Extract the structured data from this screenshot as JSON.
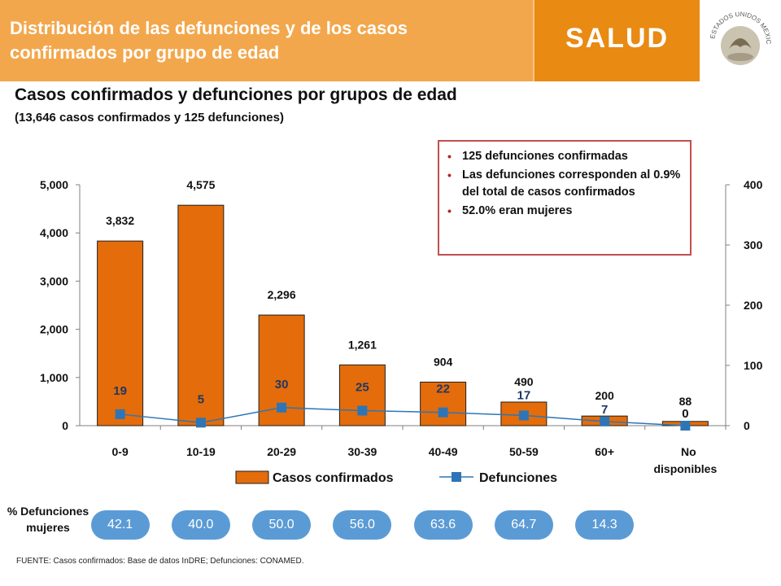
{
  "header": {
    "title": "Distribución de las defunciones y de los casos confirmados por grupo de edad",
    "brand": "SALUD",
    "seal_text": "ESTADOS UNIDOS MEXICANOS"
  },
  "chart_data": {
    "type": "bar",
    "title": "Casos confirmados y defunciones por grupos de edad",
    "subtitle": "(13,646 casos confirmados y 125 defunciones)",
    "categories": [
      "0-9",
      "10-19",
      "20-29",
      "30-39",
      "40-49",
      "50-59",
      "60+",
      "No disponibles"
    ],
    "series": [
      {
        "name": "Casos confirmados",
        "type": "bar",
        "axis": "left",
        "color": "#e46c0a",
        "values": [
          3832,
          4575,
          2296,
          1261,
          904,
          490,
          200,
          88
        ],
        "labels": [
          "3,832",
          "4,575",
          "2,296",
          "1,261",
          "904",
          "490",
          "200",
          "88"
        ]
      },
      {
        "name": "Defunciones",
        "type": "line",
        "axis": "right",
        "color": "#2e75b6",
        "values": [
          19,
          5,
          30,
          25,
          22,
          17,
          7,
          0
        ]
      }
    ],
    "ylim_left": [
      0,
      5000
    ],
    "yticks_left": [
      "0",
      "1,000",
      "2,000",
      "3,000",
      "4,000",
      "5,000"
    ],
    "ylim_right": [
      0,
      400
    ],
    "yticks_right": [
      "0",
      "100",
      "200",
      "300",
      "400"
    ],
    "legend_position": "bottom",
    "grid": false
  },
  "infobox": {
    "items": [
      "125 defunciones confirmadas",
      "Las defunciones corresponden al 0.9% del total de casos confirmados",
      "52.0% eran mujeres"
    ]
  },
  "pct_mujeres": {
    "label": "% Defunciones mujeres",
    "values": [
      "42.1",
      "40.0",
      "50.0",
      "56.0",
      "63.6",
      "64.7",
      "14.3"
    ]
  },
  "source": "FUENTE: Casos confirmados: Base de datos InDRE; Defunciones: CONAMED."
}
